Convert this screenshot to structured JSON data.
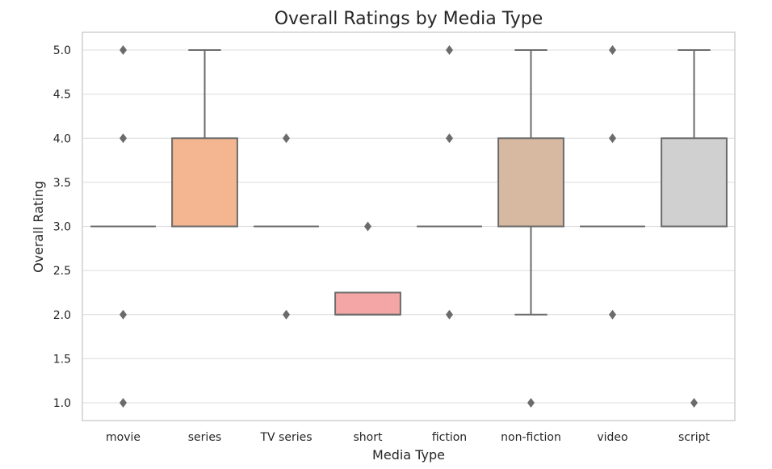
{
  "chart_data": {
    "type": "box",
    "title": "Overall Ratings by Media Type",
    "xlabel": "Media Type",
    "ylabel": "Overall Rating",
    "ylim": [
      0.8,
      5.2
    ],
    "yticks": [
      "1.0",
      "1.5",
      "2.0",
      "2.5",
      "3.0",
      "3.5",
      "4.0",
      "4.5",
      "5.0"
    ],
    "grid": true,
    "box_edge_color": "#6b6b6b",
    "categories": [
      "movie",
      "series",
      "TV series",
      "short",
      "fiction",
      "non-fiction",
      "video",
      "script"
    ],
    "boxes": [
      {
        "category": "movie",
        "color": "#f4a7a7",
        "q1": 3.0,
        "median": 3.0,
        "q3": 3.0,
        "whisker_low": 3.0,
        "whisker_high": 3.0,
        "outliers": [
          5.0,
          4.0,
          2.0,
          1.0
        ]
      },
      {
        "category": "series",
        "color": "#f4b690",
        "q1": 3.0,
        "median": 3.0,
        "q3": 4.0,
        "whisker_low": 3.0,
        "whisker_high": 5.0,
        "outliers": []
      },
      {
        "category": "TV series",
        "color": "#ffd8b0",
        "q1": 3.0,
        "median": 3.0,
        "q3": 3.0,
        "whisker_low": 3.0,
        "whisker_high": 3.0,
        "outliers": [
          4.0,
          2.0
        ]
      },
      {
        "category": "short",
        "color": "#f4a6a6",
        "q1": 2.0,
        "median": 2.0,
        "q3": 2.25,
        "whisker_low": 2.0,
        "whisker_high": 2.25,
        "outliers": [
          3.0
        ]
      },
      {
        "category": "fiction",
        "color": "#f0c8a0",
        "q1": 3.0,
        "median": 3.0,
        "q3": 3.0,
        "whisker_low": 3.0,
        "whisker_high": 3.0,
        "outliers": [
          5.0,
          4.0,
          2.0
        ]
      },
      {
        "category": "non-fiction",
        "color": "#d6b9a0",
        "q1": 3.0,
        "median": 3.0,
        "q3": 4.0,
        "whisker_low": 2.0,
        "whisker_high": 5.0,
        "outliers": [
          1.0
        ]
      },
      {
        "category": "video",
        "color": "#e8c8c8",
        "q1": 3.0,
        "median": 3.0,
        "q3": 3.0,
        "whisker_low": 3.0,
        "whisker_high": 3.0,
        "outliers": [
          5.0,
          4.0,
          2.0
        ]
      },
      {
        "category": "script",
        "color": "#d0d0d0",
        "q1": 3.0,
        "median": 3.0,
        "q3": 4.0,
        "whisker_low": 3.0,
        "whisker_high": 5.0,
        "outliers": [
          1.0
        ]
      }
    ]
  }
}
